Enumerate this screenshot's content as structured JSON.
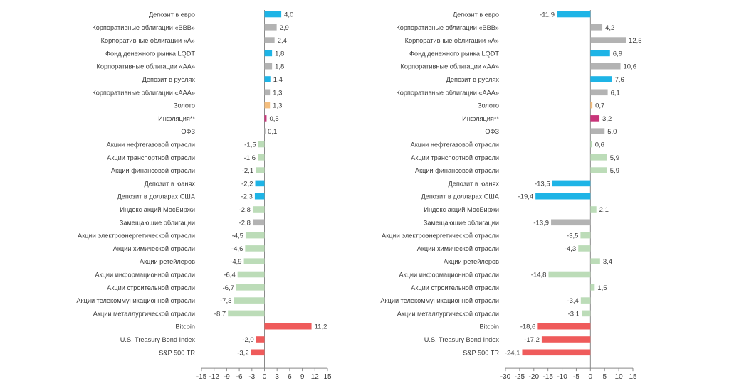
{
  "colors": {
    "blue": "#1eb4e6",
    "gray": "#b3b3b3",
    "green": "#bcdcb8",
    "red": "#ef5b5b",
    "orange": "#f4be7e",
    "magenta": "#c8357a",
    "axis": "#8a8a8a",
    "text": "#3a3a3a"
  },
  "chart_data": [
    {
      "type": "bar",
      "orientation": "horizontal",
      "xlim": [
        -15,
        15
      ],
      "ticks": [
        -15,
        -12,
        -9,
        -6,
        -3,
        0,
        3,
        6,
        9,
        12,
        15
      ],
      "tick_labels": [
        "-15",
        "-12",
        "-9",
        "-6",
        "-3",
        "0",
        "3",
        "6",
        "9",
        "12",
        "15"
      ],
      "categories": [
        "Депозит в евро",
        "Корпоративные облигации «BBB»",
        "Корпоративные облигации «A»",
        "Фонд денежного рынка LQDT",
        "Корпоративные облигации «AA»",
        "Депозит в рублях",
        "Корпоративные облигации «AAA»",
        "Золото",
        "Инфляция**",
        "ОФЗ",
        "Акции нефтегазовой отрасли",
        "Акции транспортной отрасли",
        "Акции финансовой отрасли",
        "Депозит в юанях",
        "Депозит в долларах США",
        "Индекс акций МосБиржи",
        "Замещающие облигации",
        "Акции электроэнергетической отрасли",
        "Акции химической отрасли",
        "Акции ретейлеров",
        "Акции информационной отрасли",
        "Акции строительной отрасли",
        "Акции телекоммуникационной отрасли",
        "Акции металлургической отрасли",
        "Bitcoin",
        "U.S. Treasury Bond Index",
        "S&P 500 TR"
      ],
      "values": [
        4.0,
        2.9,
        2.4,
        1.8,
        1.8,
        1.4,
        1.3,
        1.3,
        0.5,
        0.1,
        -1.5,
        -1.6,
        -2.1,
        -2.2,
        -2.3,
        -2.8,
        -2.8,
        -4.5,
        -4.6,
        -4.9,
        -6.4,
        -6.7,
        -7.3,
        -8.7,
        11.2,
        -2.0,
        -3.2
      ],
      "value_labels": [
        "4,0",
        "2,9",
        "2,4",
        "1,8",
        "1,8",
        "1,4",
        "1,3",
        "1,3",
        "0,5",
        "0,1",
        "-1,5",
        "-1,6",
        "-2,1",
        "-2,2",
        "-2,3",
        "-2,8",
        "-2,8",
        "-4,5",
        "-4,6",
        "-4,9",
        "-6,4",
        "-6,7",
        "-7,3",
        "-8,7",
        "11,2",
        "-2,0",
        "-3,2"
      ],
      "colors": [
        "blue",
        "gray",
        "gray",
        "blue",
        "gray",
        "blue",
        "gray",
        "orange",
        "magenta",
        "gray",
        "green",
        "green",
        "green",
        "blue",
        "blue",
        "green",
        "gray",
        "green",
        "green",
        "green",
        "green",
        "green",
        "green",
        "green",
        "red",
        "red",
        "red"
      ]
    },
    {
      "type": "bar",
      "orientation": "horizontal",
      "xlim": [
        -30,
        15
      ],
      "ticks": [
        -30,
        -25,
        -20,
        -15,
        -10,
        -5,
        0,
        5,
        10,
        15
      ],
      "tick_labels": [
        "-30",
        "-25",
        "-20",
        "-15",
        "-10",
        "-5",
        "0",
        "5",
        "10",
        "15"
      ],
      "categories": [
        "Депозит в евро",
        "Корпоративные облигации «BBB»",
        "Корпоративные облигации «A»",
        "Фонд денежного рынка LQDT",
        "Корпоративные облигации «AA»",
        "Депозит в рублях",
        "Корпоративные облигации «AAA»",
        "Золото",
        "Инфляция**",
        "ОФЗ",
        "Акции нефтегазовой отрасли",
        "Акции транспортной отрасли",
        "Акции финансовой отрасли",
        "Депозит в юанях",
        "Депозит в долларах США",
        "Индекс акций МосБиржи",
        "Замещающие облигации",
        "Акции электроэнергетической отрасли",
        "Акции химической отрасли",
        "Акции ретейлеров",
        "Акции информационной отрасли",
        "Акции строительной отрасли",
        "Акции телекоммуникационной отрасли",
        "Акции металлургической отрасли",
        "Bitcoin",
        "U.S. Treasury Bond Index",
        "S&P 500 TR"
      ],
      "values": [
        -11.9,
        4.2,
        12.5,
        6.9,
        10.6,
        7.6,
        6.1,
        0.7,
        3.2,
        5.0,
        0.6,
        5.9,
        5.9,
        -13.5,
        -19.4,
        2.1,
        -13.9,
        -3.5,
        -4.3,
        3.4,
        -14.8,
        1.5,
        -3.4,
        -3.1,
        -18.6,
        -17.2,
        -24.1
      ],
      "value_labels": [
        "-11,9",
        "4,2",
        "12,5",
        "6,9",
        "10,6",
        "7,6",
        "6,1",
        "0,7",
        "3,2",
        "5,0",
        "0,6",
        "5,9",
        "5,9",
        "-13,5",
        "-19,4",
        "2,1",
        "-13,9",
        "-3,5",
        "-4,3",
        "3,4",
        "-14,8",
        "1,5",
        "-3,4",
        "-3,1",
        "-18,6",
        "-17,2",
        "-24,1"
      ],
      "colors": [
        "blue",
        "gray",
        "gray",
        "blue",
        "gray",
        "blue",
        "gray",
        "orange",
        "magenta",
        "gray",
        "green",
        "green",
        "green",
        "blue",
        "blue",
        "green",
        "gray",
        "green",
        "green",
        "green",
        "green",
        "green",
        "green",
        "green",
        "red",
        "red",
        "red"
      ]
    }
  ]
}
